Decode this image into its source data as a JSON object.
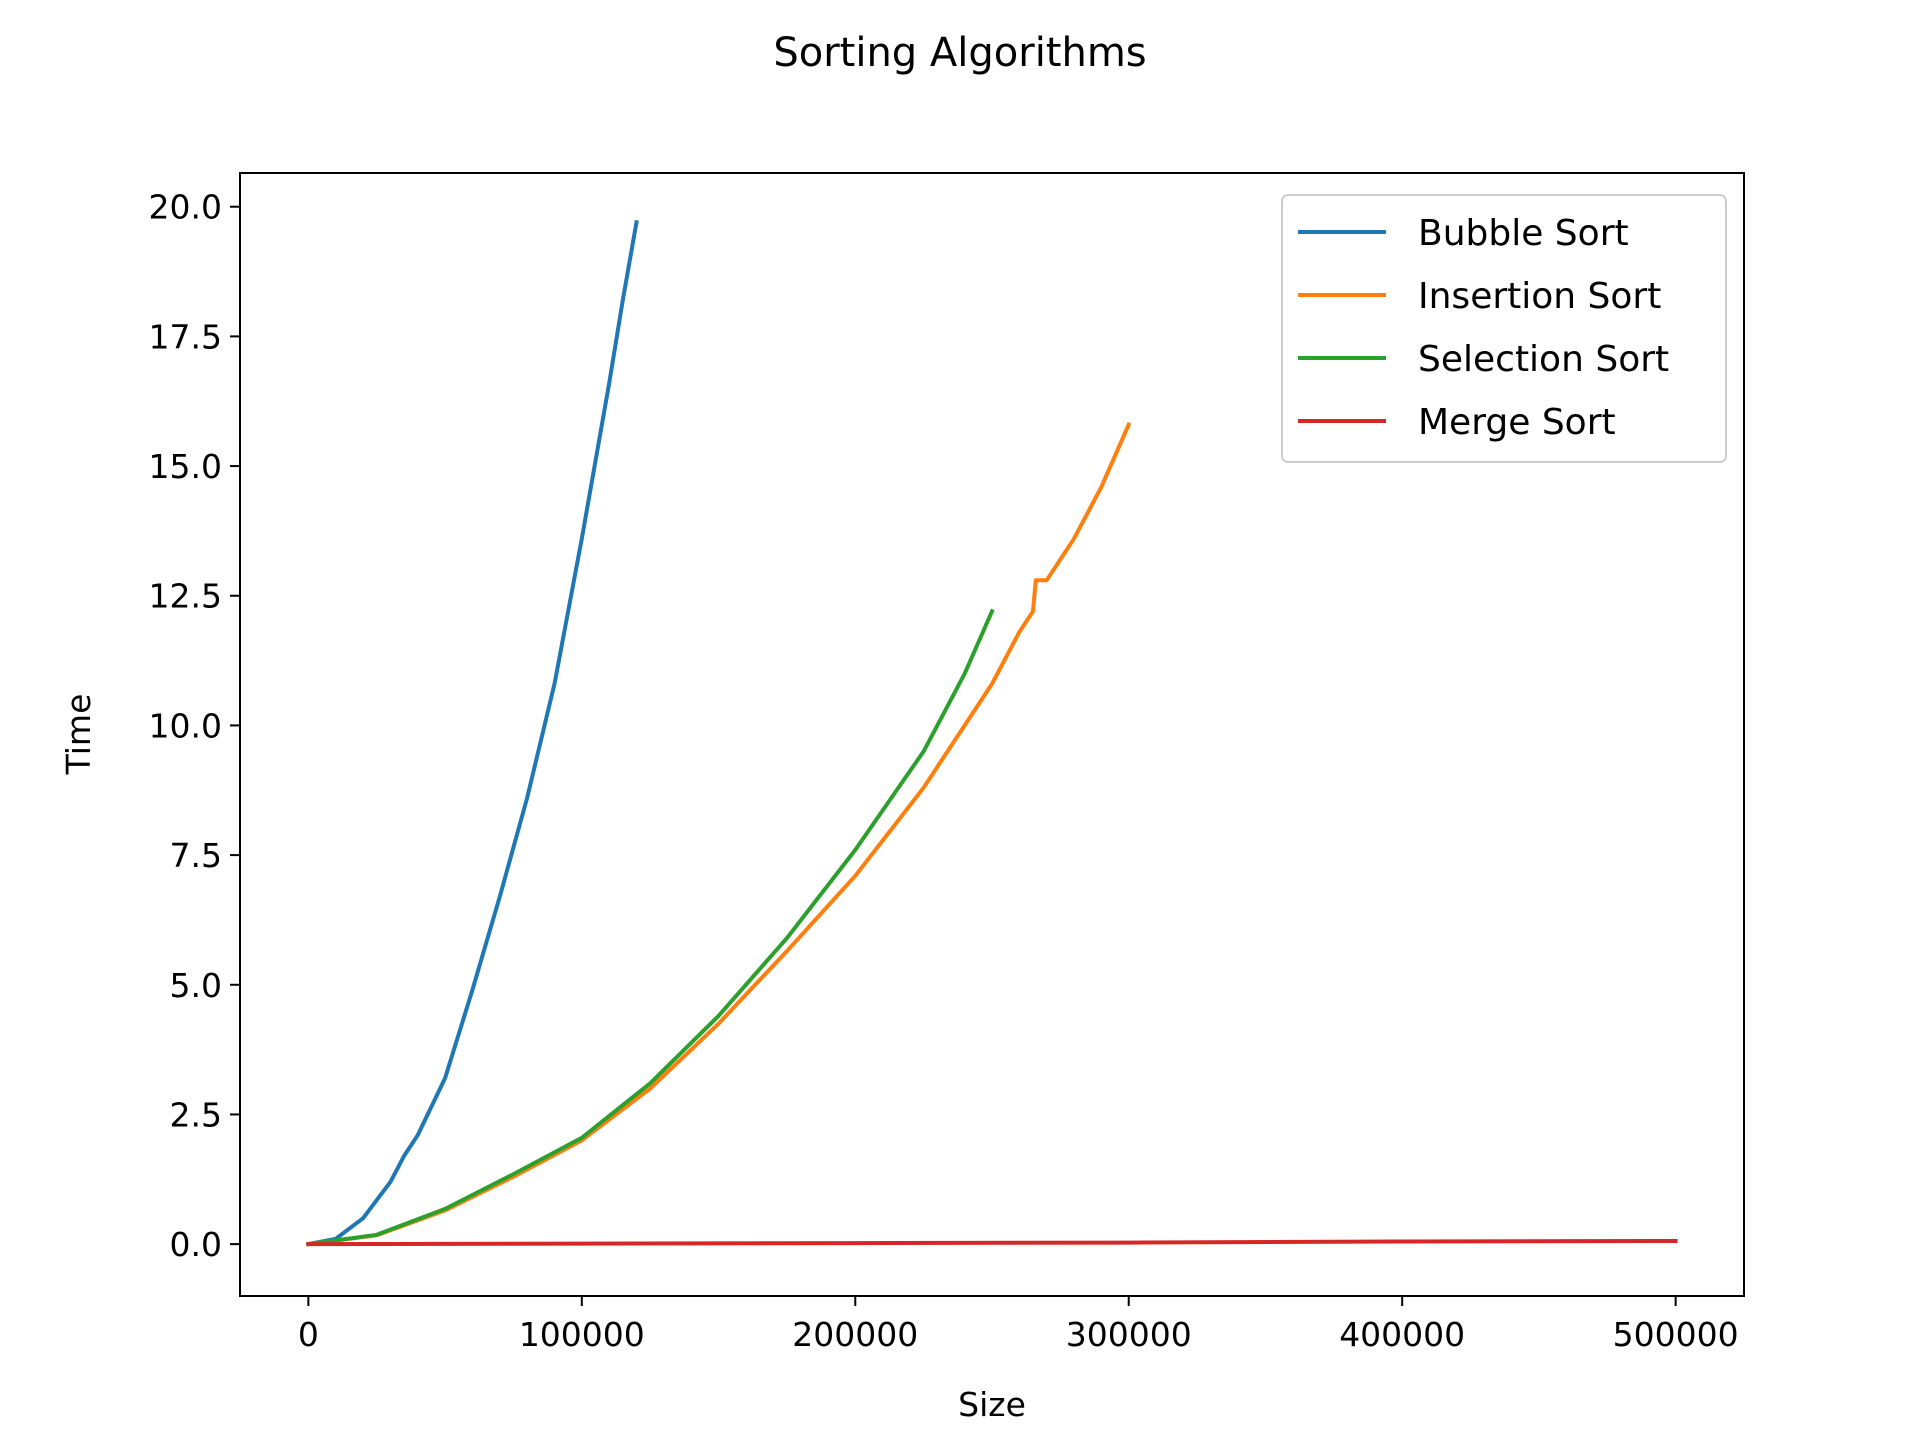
{
  "chart_data": {
    "type": "line",
    "title": "Sorting Algorithms",
    "xlabel": "Size",
    "ylabel": "Time",
    "xlim": [
      -25000,
      525000
    ],
    "ylim": [
      -1.0,
      20.65
    ],
    "x_ticks": [
      0,
      100000,
      200000,
      300000,
      400000,
      500000
    ],
    "x_tick_labels": [
      "0",
      "100000",
      "200000",
      "300000",
      "400000",
      "500000"
    ],
    "y_ticks": [
      0,
      2.5,
      5,
      7.5,
      10,
      12.5,
      15,
      17.5,
      20
    ],
    "y_tick_labels": [
      "0.0",
      "2.5",
      "5.0",
      "7.5",
      "10.0",
      "12.5",
      "15.0",
      "17.5",
      "20.0"
    ],
    "grid": false,
    "legend_position": "top-right",
    "series": [
      {
        "name": "Bubble Sort",
        "color": "#1f77b4",
        "x": [
          0,
          10000,
          20000,
          30000,
          35000,
          40000,
          50000,
          60000,
          70000,
          80000,
          90000,
          100000,
          110000,
          115000,
          120000
        ],
        "y": [
          0,
          0.1,
          0.5,
          1.2,
          1.7,
          2.1,
          3.2,
          4.9,
          6.7,
          8.6,
          10.8,
          13.6,
          16.6,
          18.2,
          19.7
        ]
      },
      {
        "name": "Insertion Sort",
        "color": "#ff7f0e",
        "x": [
          0,
          25000,
          50000,
          75000,
          100000,
          125000,
          150000,
          175000,
          200000,
          225000,
          250000,
          260000,
          265000,
          266000,
          270000,
          280000,
          290000,
          300000
        ],
        "y": [
          0,
          0.17,
          0.65,
          1.3,
          2.0,
          3.0,
          4.25,
          5.65,
          7.1,
          8.8,
          10.8,
          11.8,
          12.2,
          12.8,
          12.8,
          13.6,
          14.6,
          15.8
        ]
      },
      {
        "name": "Selection Sort",
        "color": "#2ca02c",
        "x": [
          0,
          25000,
          50000,
          75000,
          100000,
          125000,
          150000,
          175000,
          200000,
          225000,
          240000,
          250000
        ],
        "y": [
          0,
          0.18,
          0.68,
          1.35,
          2.05,
          3.1,
          4.4,
          5.9,
          7.6,
          9.5,
          11.0,
          12.2
        ]
      },
      {
        "name": "Merge Sort",
        "color": "#d62728",
        "x": [
          0,
          100000,
          200000,
          300000,
          400000,
          500000
        ],
        "y": [
          0,
          0.01,
          0.02,
          0.03,
          0.05,
          0.06
        ]
      }
    ]
  }
}
